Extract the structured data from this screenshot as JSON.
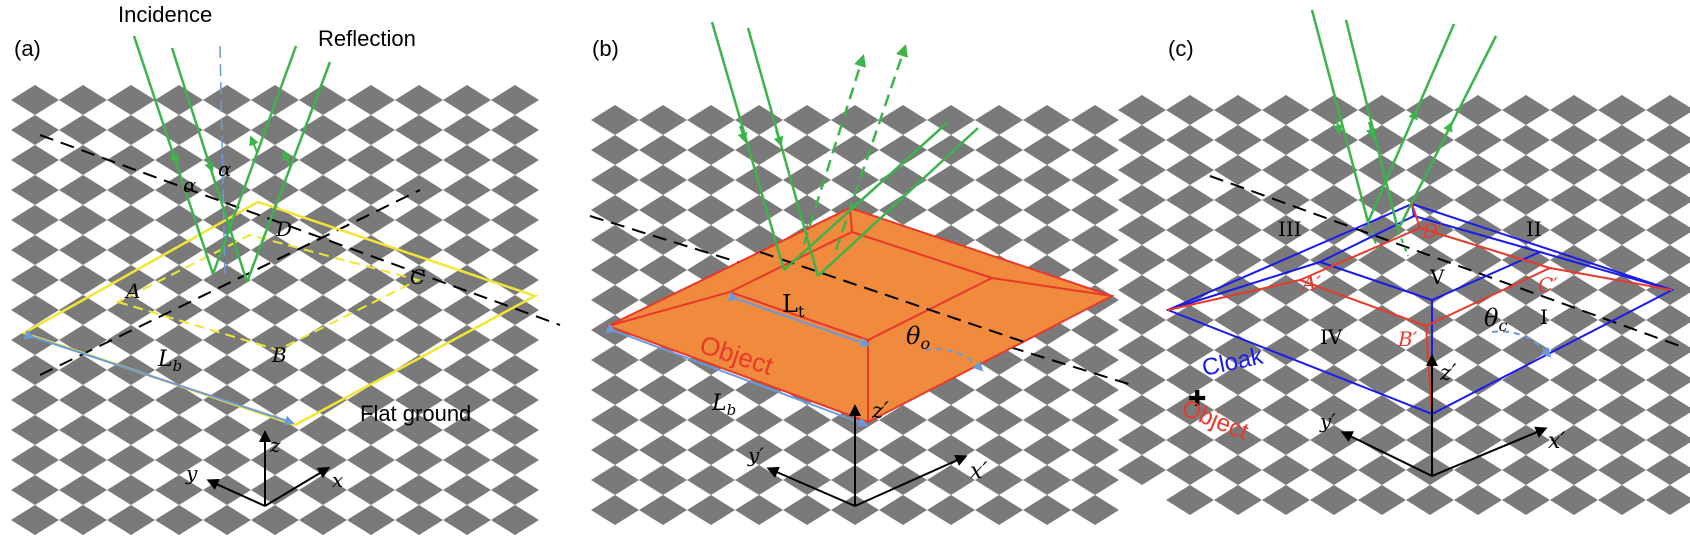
{
  "colors": {
    "tile": "#7a7a7a",
    "ray": "#3cb44b",
    "flat_outline": "#f2e533",
    "object_fill": "#f08a3c",
    "object_edge": "#e8392b",
    "cloak": "#1a1aee",
    "object_text": "#e8392b",
    "dimension": "#6a9bd8",
    "axes": "#000000"
  },
  "panel_a": {
    "tag": "(a)",
    "incidence": "Incidence",
    "reflection": "Reflection",
    "alpha1": "α",
    "alpha2": "α",
    "corner_a": "A",
    "corner_b": "B",
    "corner_c": "C",
    "corner_d": "D",
    "lb": "L",
    "lb_sub": "b",
    "ground": "Flat ground",
    "axis_z": "z",
    "axis_y": "y",
    "axis_x": "x"
  },
  "panel_b": {
    "tag": "(b)",
    "lt": "L",
    "lt_sub": "t",
    "object": "Object",
    "theta": "θ",
    "theta_sub": "o",
    "lb": "L",
    "lb_sub": "b",
    "axis_z": "z′",
    "axis_y": "y′",
    "axis_x": "x′"
  },
  "panel_c": {
    "tag": "(c)",
    "region_1": "I",
    "region_2": "II",
    "region_3": "III",
    "region_4": "IV",
    "region_5": "V",
    "corner_a": "A′",
    "corner_b": "B′",
    "corner_c": "C′",
    "corner_d": "D′",
    "theta": "θ",
    "theta_sub": "c",
    "legend_cloak": "Cloak",
    "legend_plus": "✚",
    "legend_object": "Object",
    "axis_z": "z′",
    "axis_y": "y′",
    "axis_x": "x′"
  }
}
